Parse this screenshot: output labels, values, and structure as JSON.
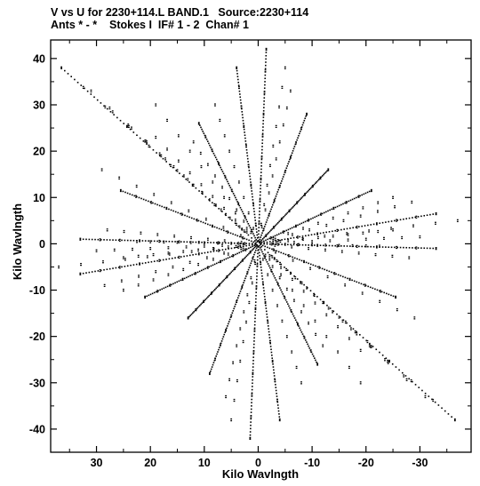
{
  "header": {
    "line1": "V vs U for 2230+114.L BAND.1   Source:2230+114",
    "line2": "Ants * - *    Stokes I  IF# 1 - 2  Chan# 1"
  },
  "chart_data": {
    "type": "scatter",
    "title": "V vs U for 2230+114.L BAND.1   Source:2230+114",
    "subtitle": "Ants * - *    Stokes I  IF# 1 - 2  Chan# 1",
    "xlabel": "Kilo Wavlngth",
    "ylabel": "Kilo Wavlngth",
    "xlim": [
      38.5,
      -39.5
    ],
    "ylim": [
      -45,
      44
    ],
    "x_reversed": true,
    "xticks": [
      30,
      20,
      10,
      0,
      -10,
      -20,
      -30
    ],
    "xtick_labels": [
      "30",
      "20",
      "10",
      "0",
      "-10",
      "-20",
      "-30"
    ],
    "yticks": [
      40,
      30,
      20,
      10,
      0,
      -10,
      -20,
      -30,
      -40
    ],
    "ytick_labels": [
      "40",
      "30",
      "20",
      "10",
      "0",
      "-10",
      "-20",
      "-30",
      "-40"
    ],
    "grid": false,
    "legend": "none",
    "marker_color": "#000000",
    "baseline_tracks": [
      {
        "u": 36.5,
        "v": 38.0
      },
      {
        "u": 31.0,
        "v": 33.0
      },
      {
        "u": 27.0,
        "v": 28.5
      },
      {
        "u": 23.5,
        "v": 25.0
      },
      {
        "u": 19.0,
        "v": 23.0
      },
      {
        "u": 11.0,
        "v": 26.0
      },
      {
        "u": 4.0,
        "v": 38.0
      },
      {
        "u": -1.5,
        "v": 42.0
      },
      {
        "u": -5.0,
        "v": 38.0
      },
      {
        "u": -6.0,
        "v": 33.0
      },
      {
        "u": -9.0,
        "v": 28.0
      },
      {
        "u": -13.0,
        "v": 16.0
      },
      {
        "u": -21.0,
        "v": 11.5
      },
      {
        "u": -25.0,
        "v": 10.0
      },
      {
        "u": -28.5,
        "v": 9.0
      },
      {
        "u": -33.0,
        "v": 6.5
      },
      {
        "u": -37.0,
        "v": 5.0
      },
      {
        "u": -25.0,
        "v": 3.0
      },
      {
        "u": -30.0,
        "v": 1.5
      },
      {
        "u": 29.0,
        "v": 16.0
      },
      {
        "u": 28.0,
        "v": 3.0
      },
      {
        "u": 33.0,
        "v": 1.0
      },
      {
        "u": 25.5,
        "v": 11.5
      },
      {
        "u": 22.5,
        "v": 0.5
      },
      {
        "u": 12.0,
        "v": 22.0
      },
      {
        "u": 19.0,
        "v": 30.0
      },
      {
        "u": 8.0,
        "v": 30.0
      }
    ],
    "radial_lines": [
      {
        "u": 25.5,
        "v": 11.5
      },
      {
        "u": 11.0,
        "v": 26.0
      },
      {
        "u": 4.0,
        "v": 38.0
      },
      {
        "u": -1.5,
        "v": 42.0
      },
      {
        "u": -9.0,
        "v": 28.0
      },
      {
        "u": -13.0,
        "v": 16.0
      },
      {
        "u": -21.0,
        "v": 11.5
      },
      {
        "u": -33.0,
        "v": 6.5
      },
      {
        "u": 36.5,
        "v": 38.0
      },
      {
        "u": 33.0,
        "v": 1.0
      }
    ]
  }
}
